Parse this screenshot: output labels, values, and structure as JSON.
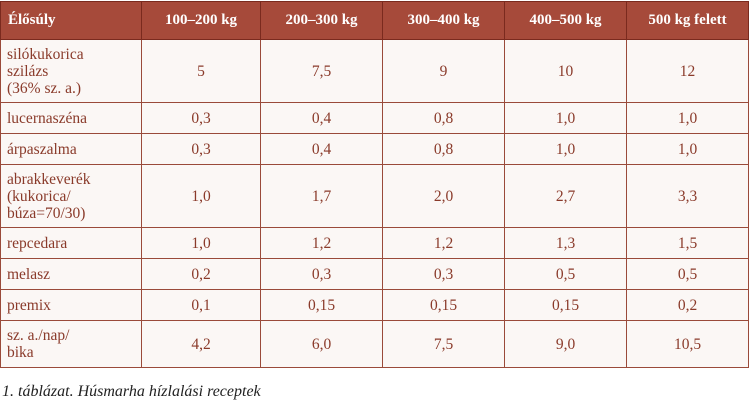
{
  "table": {
    "headers": [
      "Élősúly",
      "100–200 kg",
      "200–300 kg",
      "300–400 kg",
      "400–500 kg",
      "500 kg felett"
    ],
    "rows": [
      {
        "label": [
          "silókukorica",
          "szilázs",
          "(36% sz. a.)"
        ],
        "values": [
          "5",
          "7,5",
          "9",
          "10",
          "12"
        ]
      },
      {
        "label": [
          "lucernaszéna"
        ],
        "values": [
          "0,3",
          "0,4",
          "0,8",
          "1,0",
          "1,0"
        ]
      },
      {
        "label": [
          "árpaszalma"
        ],
        "values": [
          "0,3",
          "0,4",
          "0,8",
          "1,0",
          "1,0"
        ]
      },
      {
        "label": [
          "abrakkeverék",
          "(kukorica/",
          "búza=70/30)"
        ],
        "values": [
          "1,0",
          "1,7",
          "2,0",
          "2,7",
          "3,3"
        ]
      },
      {
        "label": [
          "repcedara"
        ],
        "values": [
          "1,0",
          "1,2",
          "1,2",
          "1,3",
          "1,5"
        ]
      },
      {
        "label": [
          "melasz"
        ],
        "values": [
          "0,2",
          "0,3",
          "0,3",
          "0,5",
          "0,5"
        ]
      },
      {
        "label": [
          "premix"
        ],
        "values": [
          "0,1",
          "0,15",
          "0,15",
          "0,15",
          "0,2"
        ]
      },
      {
        "label": [
          "sz. a./nap/",
          "bika"
        ],
        "values": [
          "4,2",
          "6,0",
          "7,5",
          "9,0",
          "10,5"
        ]
      }
    ]
  },
  "caption": "1. táblázat. Húsmarha hízlalási receptek"
}
